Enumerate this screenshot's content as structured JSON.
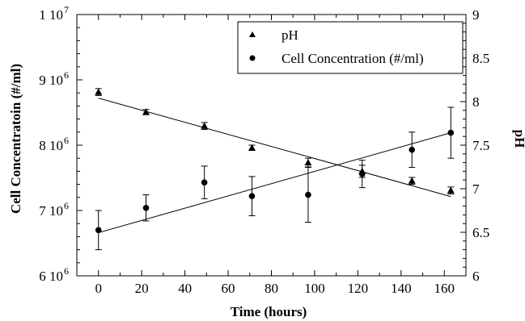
{
  "chart_data": {
    "type": "scatter",
    "xlabel": "Time (hours)",
    "ylabel_left": "Cell Concentratoin (#/ml)",
    "ylabel_right": "pH",
    "xlim": [
      -10,
      170
    ],
    "ylim_left": [
      6000000,
      10000000
    ],
    "ylim_right": [
      6,
      9
    ],
    "x_ticks": [
      0,
      20,
      40,
      60,
      80,
      100,
      120,
      140,
      160
    ],
    "y_left_ticks": [
      {
        "value": 6000000,
        "mant": "6 10",
        "exp": "6"
      },
      {
        "value": 7000000,
        "mant": "7 10",
        "exp": "6"
      },
      {
        "value": 8000000,
        "mant": "8 10",
        "exp": "6"
      },
      {
        "value": 9000000,
        "mant": "9 10",
        "exp": "6"
      },
      {
        "value": 10000000,
        "mant": "1 10",
        "exp": "7"
      }
    ],
    "y_right_ticks": [
      "6",
      "6.5",
      "7",
      "7.5",
      "8",
      "8.5",
      "9"
    ],
    "legend_position": "top-right",
    "series": [
      {
        "name": "pH",
        "axis": "right",
        "marker": "triangle",
        "points": [
          {
            "x": 0,
            "y": 8.11,
            "err": 0.04
          },
          {
            "x": 22,
            "y": 7.88,
            "err": 0.03
          },
          {
            "x": 49,
            "y": 7.72,
            "err": 0.04
          },
          {
            "x": 71,
            "y": 7.47,
            "err": 0.03
          },
          {
            "x": 97,
            "y": 7.3,
            "err": 0.05
          },
          {
            "x": 122,
            "y": 7.2,
            "err": 0.07
          },
          {
            "x": 145,
            "y": 7.09,
            "err": 0.04
          },
          {
            "x": 163,
            "y": 6.98,
            "err": 0.04
          }
        ],
        "fit": {
          "x0": 0,
          "y0": 8.04,
          "x1": 163,
          "y1": 6.91
        }
      },
      {
        "name": "Cell Concentration (#/ml)",
        "axis": "left",
        "marker": "circle",
        "points": [
          {
            "x": 0,
            "y": 6700000,
            "err": 300000
          },
          {
            "x": 22,
            "y": 7040000,
            "err": 200000
          },
          {
            "x": 49,
            "y": 7430000,
            "err": 250000
          },
          {
            "x": 71,
            "y": 7220000,
            "err": 300000
          },
          {
            "x": 97,
            "y": 7240000,
            "err": 420000
          },
          {
            "x": 122,
            "y": 7560000,
            "err": 210000
          },
          {
            "x": 145,
            "y": 7930000,
            "err": 270000
          },
          {
            "x": 163,
            "y": 8190000,
            "err": 390000
          }
        ],
        "fit": {
          "x0": 0,
          "y0": 6660000,
          "x1": 163,
          "y1": 8190000
        }
      }
    ]
  }
}
